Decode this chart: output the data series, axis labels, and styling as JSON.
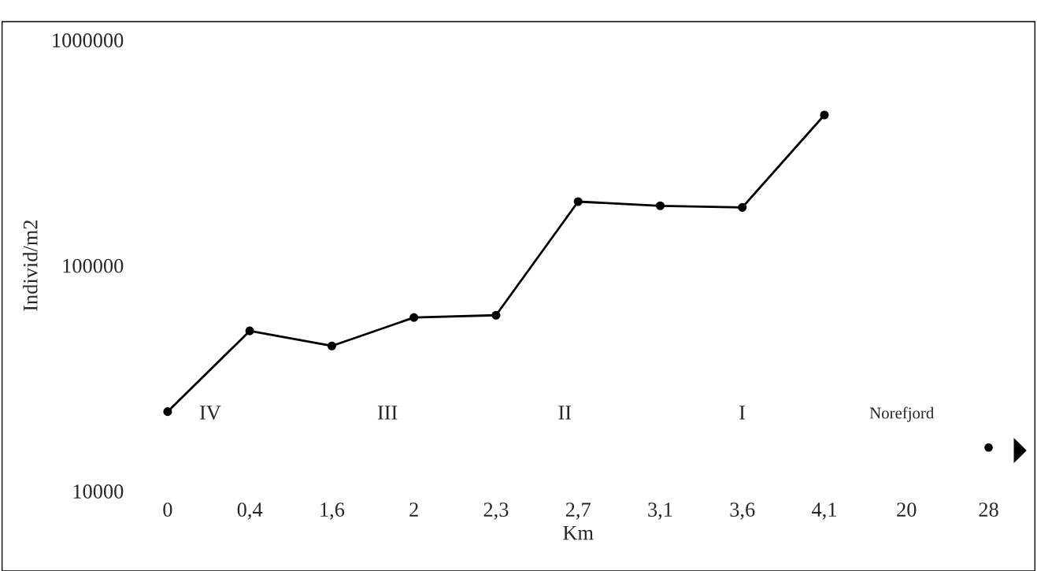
{
  "chart_data": {
    "type": "line",
    "xlabel": "Km",
    "ylabel": "Individ/m2",
    "categories": [
      "0",
      "0,4",
      "1,6",
      "2",
      "2,3",
      "2,7",
      "3,1",
      "3,6",
      "4,1",
      "20",
      "28"
    ],
    "series": [
      {
        "color": "#000000",
        "values": [
          22500,
          51300,
          44000,
          58800,
          60200,
          192000,
          184000,
          181000,
          465000,
          null,
          null
        ]
      },
      {
        "type": "scatter",
        "color": "#000000",
        "values": [
          null,
          null,
          null,
          null,
          null,
          null,
          null,
          null,
          null,
          null,
          15600
        ]
      }
    ],
    "log": true,
    "ylim": [
      10000,
      1000000
    ],
    "yticks": [
      10000,
      100000,
      1000000
    ],
    "grid": false,
    "marker": "circle",
    "line_style": "solid",
    "annotations": [
      "IV",
      "III",
      "II",
      "I",
      "Norefjord"
    ]
  }
}
